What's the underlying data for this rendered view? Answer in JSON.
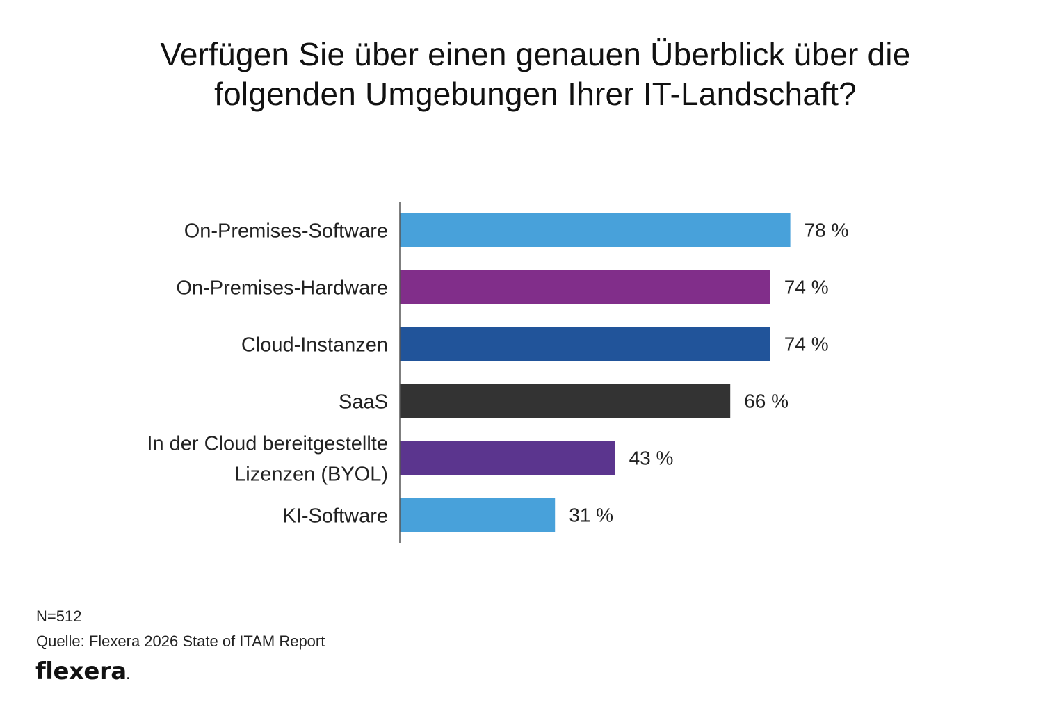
{
  "title": "Verfügen Sie über einen genauen Überblick über die folgenden Umgebungen Ihrer IT-Landschaft?",
  "footer": {
    "n": "N=512",
    "source": "Quelle: Flexera 2026 State of ITAM Report",
    "logo": "flexera"
  },
  "chart_data": {
    "type": "bar",
    "orientation": "horizontal",
    "title": "Verfügen Sie über einen genauen Überblick über die folgenden Umgebungen Ihrer IT-Landschaft?",
    "xlabel": "",
    "ylabel": "",
    "xlim": [
      0,
      100
    ],
    "grid": false,
    "legend": "none",
    "categories": [
      "On-Premises-Software",
      "On-Premises-Hardware",
      "Cloud-Instanzen",
      "SaaS",
      "In der Cloud bereitgestellte Lizenzen (BYOL)",
      "KI-Software"
    ],
    "category_lines": [
      [
        "On-Premises-Software"
      ],
      [
        "On-Premises-Hardware"
      ],
      [
        "Cloud-Instanzen"
      ],
      [
        "SaaS"
      ],
      [
        "In der Cloud bereitgestellte",
        "Lizenzen (BYOL)"
      ],
      [
        "KI-Software"
      ]
    ],
    "values": [
      78,
      74,
      74,
      66,
      43,
      31
    ],
    "value_labels": [
      "78 %",
      "74 %",
      "74 %",
      "66 %",
      "43 %",
      "31 %"
    ],
    "colors": [
      "#48A1DA",
      "#812E8A",
      "#21549A",
      "#333333",
      "#5B358E",
      "#48A1DA"
    ]
  }
}
